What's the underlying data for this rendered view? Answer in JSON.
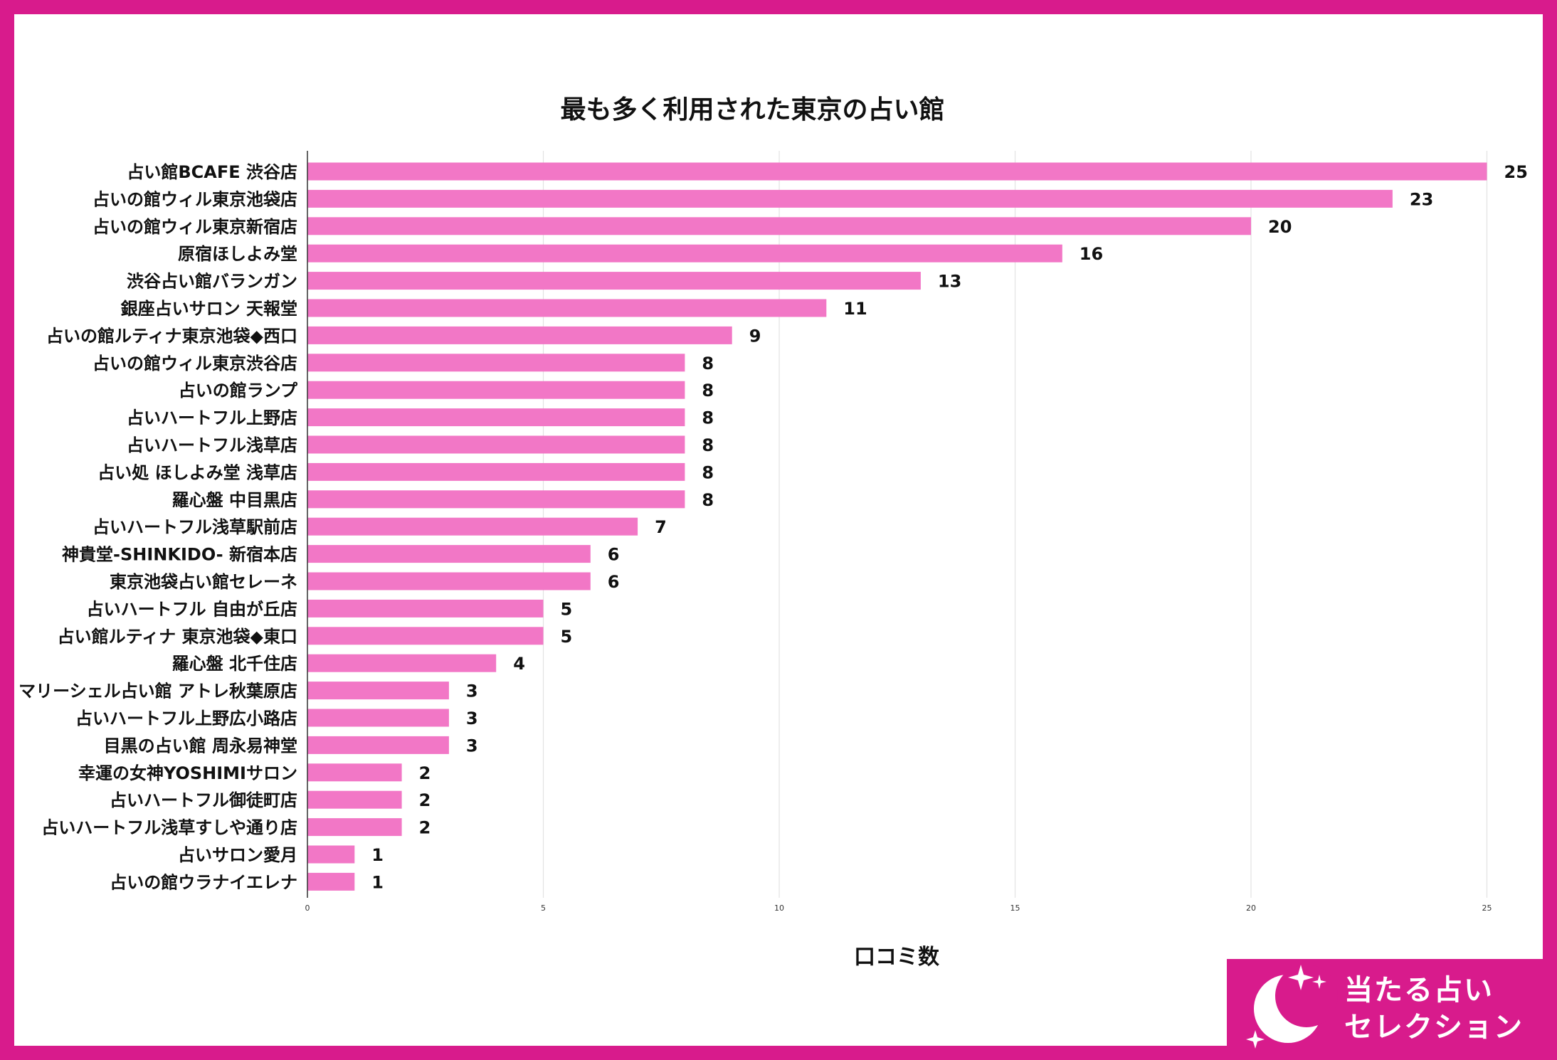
{
  "colors": {
    "frame": "#d81b8c",
    "bar": "#f277c6",
    "grid": "#e3e3e3",
    "text": "#111111",
    "logo_bg": "#d81b8c"
  },
  "logo": {
    "line1": "当たる占い",
    "line2": "セレクション",
    "icon": "moon-stars-icon"
  },
  "chart_data": {
    "type": "bar",
    "orientation": "horizontal",
    "title": "最も多く利用された東京の占い館",
    "xlabel": "口コミ数",
    "ylabel": "",
    "xlim": [
      0,
      26
    ],
    "xticks": [
      0,
      5,
      10,
      15,
      20,
      25
    ],
    "grid": true,
    "data_labels": true,
    "categories": [
      "占い館BCAFE 渋谷店",
      "占いの館ウィル東京池袋店",
      "占いの館ウィル東京新宿店",
      "原宿ほしよみ堂",
      "渋谷占い館バランガン",
      "銀座占いサロン 天報堂",
      "占いの館ルティナ東京池袋◆西口",
      "占いの館ウィル東京渋谷店",
      "占いの館ランプ",
      "占いハートフル上野店",
      "占いハートフル浅草店",
      "占い処 ほしよみ堂 浅草店",
      "羅心盤 中目黒店",
      "占いハートフル浅草駅前店",
      "神貴堂-SHINKIDO- 新宿本店",
      "東京池袋占い館セレーネ",
      "占いハートフル 自由が丘店",
      "占い館ルティナ 東京池袋◆東口",
      "羅心盤 北千住店",
      "マリーシェル占い館 アトレ秋葉原店",
      "占いハートフル上野広小路店",
      "目黒の占い館 周永易神堂",
      "幸運の女神YOSHIMIサロン",
      "占いハートフル御徒町店",
      "占いハートフル浅草すしや通り店",
      "占いサロン愛月",
      "占いの館ウラナイエレナ"
    ],
    "values": [
      25,
      23,
      20,
      16,
      13,
      11,
      9,
      8,
      8,
      8,
      8,
      8,
      8,
      7,
      6,
      6,
      5,
      5,
      4,
      3,
      3,
      3,
      2,
      2,
      2,
      1,
      1
    ]
  }
}
